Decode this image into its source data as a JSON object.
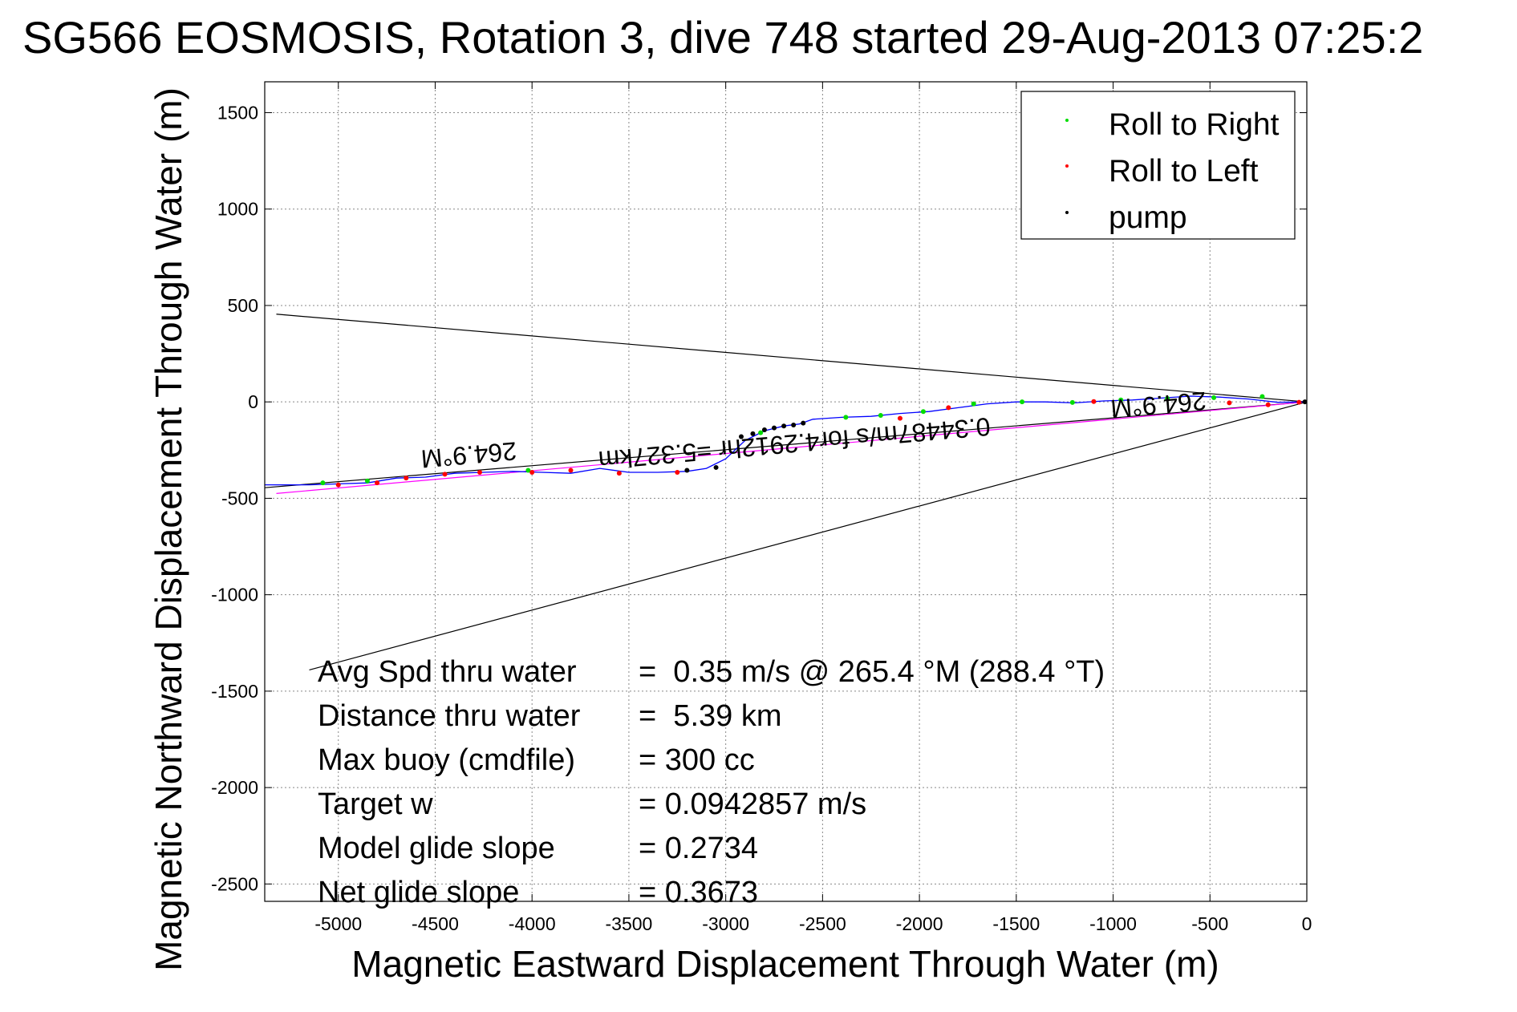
{
  "chart_data": {
    "type": "line",
    "title": "SG566 EOSMOSIS, Rotation 3, dive 748 started 29-Aug-2013 07:25:2",
    "xlabel": "Magnetic Eastward Displacement Through Water (m)",
    "ylabel": "Magnetic Northward Displacement Through Water (m)",
    "xlim": [
      -5380,
      0
    ],
    "ylim": [
      -2590,
      1660
    ],
    "xticks": [
      -5000,
      -4500,
      -4000,
      -3500,
      -3000,
      -2500,
      -2000,
      -1500,
      -1000,
      -500,
      0
    ],
    "yticks": [
      1500,
      1000,
      500,
      0,
      -500,
      -1000,
      -1500,
      -2000,
      -2500
    ],
    "grid": true,
    "legend_position": "top-right",
    "legend": [
      {
        "label": "Roll to Right",
        "color": "#00dd00"
      },
      {
        "label": "Roll to Left",
        "color": "#ff0000"
      },
      {
        "label": "pump",
        "color": "#000000"
      }
    ],
    "track": {
      "color": "#0000ff",
      "x": [
        0,
        -150,
        -300,
        -450,
        -600,
        -750,
        -900,
        -1050,
        -1200,
        -1350,
        -1500,
        -1650,
        -1800,
        -1950,
        -2100,
        -2250,
        -2400,
        -2550,
        -2620,
        -2700,
        -2800,
        -2900,
        -3000,
        -3100,
        -3200,
        -3350,
        -3500,
        -3650,
        -3800,
        -3950,
        -4100,
        -4250,
        -4400,
        -4550,
        -4700,
        -4850,
        -5000,
        -5150,
        -5380
      ],
      "y": [
        0,
        -2,
        15,
        25,
        30,
        20,
        10,
        5,
        -5,
        0,
        0,
        -10,
        -30,
        -50,
        -60,
        -75,
        -80,
        -90,
        -115,
        -125,
        -150,
        -200,
        -295,
        -345,
        -360,
        -365,
        -365,
        -345,
        -370,
        -365,
        -360,
        -365,
        -370,
        -390,
        -395,
        -420,
        -425,
        -430,
        -430
      ]
    },
    "roll_right_points": {
      "color": "#00dd00",
      "x": [
        -230,
        -480,
        -720,
        -960,
        -1210,
        -1470,
        -1720,
        -1980,
        -2200,
        -2380,
        -2820,
        -4020,
        -4850,
        -5080
      ],
      "y": [
        28,
        22,
        18,
        10,
        -3,
        0,
        -10,
        -50,
        -70,
        -80,
        -160,
        -355,
        -410,
        -420
      ]
    },
    "roll_left_points": {
      "color": "#ff0000",
      "x": [
        -40,
        -200,
        -400,
        -1100,
        -1850,
        -2100,
        -3250,
        -3550,
        -3800,
        -4000,
        -4270,
        -4450,
        -4650,
        -4800,
        -5000
      ],
      "y": [
        -2,
        -15,
        -5,
        2,
        -30,
        -85,
        -365,
        -370,
        -355,
        -365,
        -365,
        -375,
        -395,
        -420,
        -430
      ]
    },
    "pump_points": {
      "color": "#000000",
      "x": [
        -10,
        -2600,
        -2650,
        -2700,
        -2750,
        -2800,
        -2860,
        -2920,
        -3050,
        -3200
      ],
      "y": [
        0,
        -110,
        -120,
        -125,
        -135,
        -145,
        -165,
        -180,
        -340,
        -355
      ]
    },
    "reference_lines": [
      {
        "color": "#000000",
        "x": [
          0,
          -5320
        ],
        "y": [
          0,
          455
        ]
      },
      {
        "color": "#000000",
        "x": [
          0,
          -5150
        ],
        "y": [
          0,
          -1390
        ]
      },
      {
        "color": "#000000",
        "x": [
          0,
          -5380
        ],
        "y": [
          0,
          -445
        ]
      },
      {
        "color": "#ff00ff",
        "x": [
          0,
          -5320
        ],
        "y": [
          0,
          -475
        ]
      }
    ],
    "annotations": [
      {
        "text": "264.9°M",
        "x": -4330,
        "y": -230,
        "rotation_deg": 175
      },
      {
        "text": "264.9°M",
        "x": -770,
        "y": 30,
        "rotation_deg": 175
      },
      {
        "text": "0.34487m/s for4.2912hr =5.327km",
        "x": -2650,
        "y": -170,
        "rotation_deg": 175
      }
    ],
    "summary": [
      {
        "label": "Avg Spd thru water",
        "value": "=  0.35 m/s @ 265.4 °M (288.4 °T)"
      },
      {
        "label": "Distance thru water",
        "value": "=  5.39 km"
      },
      {
        "label": "Max buoy (cmdfile)",
        "value": "= 300 cc"
      },
      {
        "label": "Target w",
        "value": "= 0.0942857 m/s"
      },
      {
        "label": "Model glide slope",
        "value": "= 0.2734"
      },
      {
        "label": "Net glide slope",
        "value": "= 0.3673"
      }
    ]
  }
}
